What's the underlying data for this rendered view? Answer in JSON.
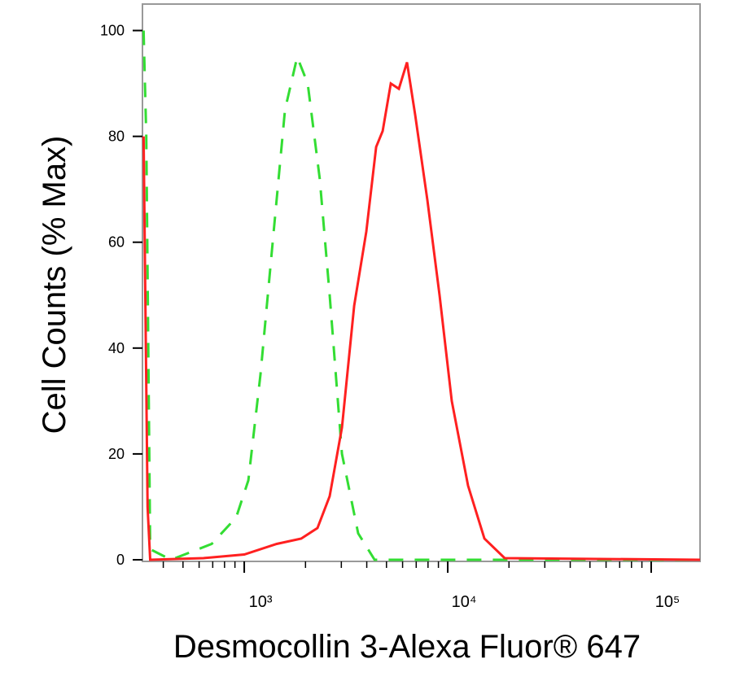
{
  "chart_data": {
    "type": "line",
    "x_label": "Desmocollin 3-Alexa Fluor® 647",
    "y_label": "Cell Counts (% Max)",
    "xscale": "log",
    "xlim": [
      316,
      173780
    ],
    "ylim": [
      0,
      105
    ],
    "xticks": [
      {
        "value": 1000,
        "label": "10³"
      },
      {
        "value": 10000,
        "label": "10⁴"
      },
      {
        "value": 100000,
        "label": "10⁵"
      }
    ],
    "xminorticks": [
      400,
      500,
      600,
      700,
      800,
      900,
      2000,
      3000,
      4000,
      5000,
      6000,
      7000,
      8000,
      9000,
      20000,
      30000,
      40000,
      50000,
      60000,
      70000,
      80000,
      90000
    ],
    "yticks": [
      0,
      20,
      40,
      60,
      80,
      100
    ],
    "series": [
      {
        "color": "#33dd33",
        "dashed": true,
        "x": [
          320,
          330,
          345,
          437,
          692,
          912,
          1047,
          1202,
          1380,
          1585,
          1820,
          2050,
          2350,
          2630,
          3020,
          3630,
          4370,
          173780
        ],
        "values": [
          100,
          80,
          2,
          0,
          3,
          8,
          15,
          35,
          60,
          85,
          95,
          90,
          72,
          50,
          20,
          5,
          0,
          0
        ]
      },
      {
        "color": "#ff2020",
        "dashed": false,
        "x": [
          320,
          335,
          345,
          630,
          1000,
          1445,
          1905,
          2290,
          2630,
          3020,
          3470,
          3980,
          4450,
          4790,
          5250,
          5750,
          6310,
          6920,
          7940,
          9120,
          10470,
          12590,
          15140,
          19050,
          173780
        ],
        "values": [
          80,
          10,
          0,
          0.3,
          1,
          3,
          4,
          6,
          12,
          25,
          48,
          62,
          78,
          81,
          90,
          89,
          94,
          84,
          68,
          50,
          30,
          14,
          4,
          0.3,
          0
        ]
      }
    ]
  }
}
